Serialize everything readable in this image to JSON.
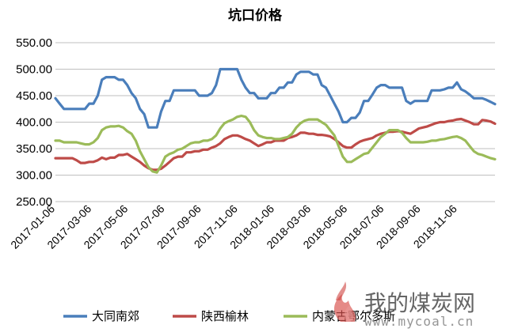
{
  "chart_data": {
    "type": "line",
    "title": "坑口价格",
    "ylim": [
      250,
      550
    ],
    "yticks": [
      "250.00",
      "300.00",
      "350.00",
      "400.00",
      "450.00",
      "500.00",
      "550.00"
    ],
    "xlabels": [
      "2017-01-06",
      "2017-03-06",
      "2017-05-06",
      "2017-07-06",
      "2017-09-06",
      "2017-11-06",
      "2018-01-06",
      "2018-03-06",
      "2018-05-06",
      "2018-07-06",
      "2018-09-06",
      "2018-11-06"
    ],
    "grid": "horizontal",
    "legend_position": "bottom",
    "series": [
      {
        "name": "大同南郊",
        "color": "#4a7ebb",
        "values": [
          445,
          435,
          425,
          425,
          425,
          425,
          425,
          425,
          435,
          435,
          450,
          480,
          485,
          485,
          485,
          480,
          480,
          470,
          455,
          445,
          425,
          415,
          390,
          390,
          390,
          420,
          440,
          440,
          460,
          460,
          460,
          460,
          460,
          460,
          450,
          450,
          450,
          455,
          470,
          500,
          500,
          500,
          500,
          500,
          480,
          465,
          455,
          455,
          445,
          445,
          445,
          455,
          455,
          465,
          465,
          475,
          475,
          490,
          495,
          495,
          495,
          490,
          490,
          470,
          465,
          450,
          435,
          420,
          400,
          400,
          408,
          408,
          418,
          440,
          440,
          452,
          465,
          470,
          470,
          465,
          465,
          465,
          465,
          440,
          435,
          440,
          440,
          440,
          440,
          460,
          460,
          460,
          462,
          465,
          465,
          475,
          462,
          458,
          452,
          445,
          445,
          445,
          442,
          438,
          434
        ]
      },
      {
        "name": "陕西榆林",
        "color": "#be4b48",
        "values": [
          332,
          332,
          332,
          332,
          332,
          328,
          323,
          323,
          325,
          325,
          328,
          333,
          330,
          333,
          333,
          338,
          338,
          340,
          335,
          330,
          325,
          318,
          313,
          310,
          310,
          312,
          318,
          325,
          332,
          335,
          335,
          343,
          343,
          345,
          345,
          348,
          348,
          352,
          355,
          360,
          368,
          372,
          375,
          375,
          372,
          368,
          365,
          360,
          355,
          358,
          362,
          362,
          365,
          365,
          365,
          370,
          372,
          375,
          380,
          380,
          378,
          378,
          376,
          376,
          375,
          373,
          368,
          362,
          355,
          352,
          352,
          358,
          363,
          366,
          368,
          370,
          375,
          378,
          380,
          382,
          382,
          383,
          382,
          380,
          378,
          383,
          388,
          390,
          392,
          395,
          398,
          400,
          400,
          402,
          403,
          405,
          406,
          403,
          400,
          396,
          396,
          404,
          403,
          401,
          397
        ]
      },
      {
        "name": "内蒙古鄂尔多斯",
        "color": "#9bbb59",
        "values": [
          365,
          365,
          362,
          362,
          362,
          362,
          360,
          358,
          358,
          362,
          370,
          385,
          390,
          392,
          392,
          393,
          390,
          383,
          378,
          365,
          345,
          330,
          315,
          307,
          305,
          318,
          335,
          340,
          343,
          348,
          350,
          355,
          360,
          362,
          362,
          365,
          365,
          368,
          375,
          388,
          398,
          402,
          405,
          410,
          412,
          410,
          400,
          385,
          375,
          372,
          370,
          370,
          368,
          368,
          370,
          372,
          378,
          390,
          398,
          403,
          405,
          405,
          405,
          400,
          395,
          385,
          375,
          355,
          335,
          325,
          325,
          330,
          335,
          340,
          342,
          352,
          362,
          372,
          378,
          385,
          385,
          385,
          380,
          370,
          362,
          362,
          362,
          362,
          363,
          365,
          365,
          367,
          368,
          370,
          372,
          373,
          370,
          365,
          355,
          345,
          340,
          338,
          335,
          332,
          330
        ]
      }
    ]
  },
  "watermark": {
    "name": "我的煤炭网",
    "url": "www.mycoal.cn"
  }
}
